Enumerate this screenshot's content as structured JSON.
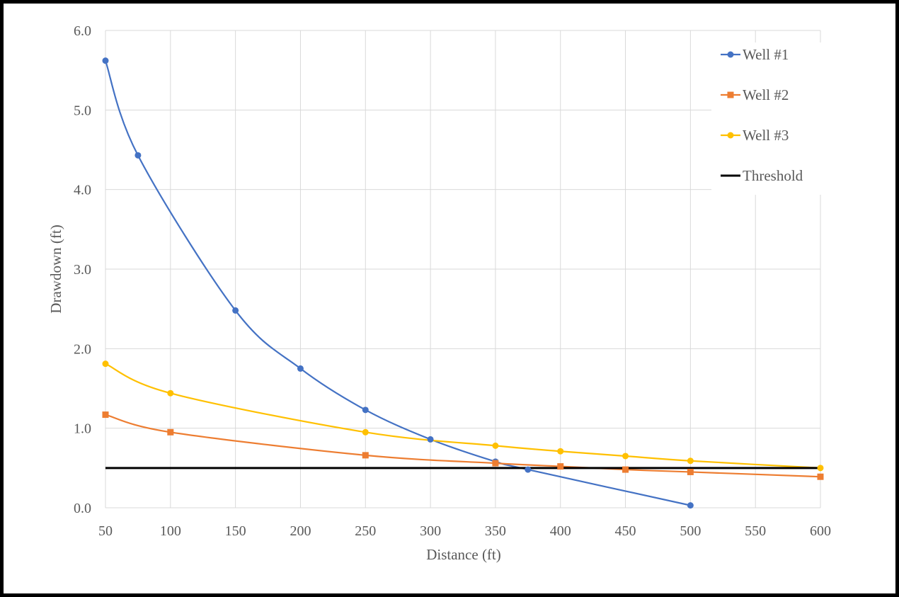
{
  "chart_data": {
    "type": "line",
    "title": "",
    "xlabel": "Distance  (ft)",
    "ylabel": "Drawdown  (ft)",
    "xlim": [
      50,
      600
    ],
    "ylim": [
      0,
      6
    ],
    "x_ticks": [
      50,
      100,
      150,
      200,
      250,
      300,
      350,
      400,
      450,
      500,
      550,
      600
    ],
    "y_ticks": [
      0,
      1,
      2,
      3,
      4,
      5,
      6
    ],
    "x_tick_labels": [
      "50",
      "100",
      "150",
      "200",
      "250",
      "300",
      "350",
      "400",
      "450",
      "500",
      "550",
      "600"
    ],
    "y_tick_labels": [
      "0.0",
      "1.0",
      "2.0",
      "3.0",
      "4.0",
      "5.0",
      "6.0"
    ],
    "grid": true,
    "legend_position": "top-right",
    "series": [
      {
        "name": "Well #1",
        "color": "#4472C4",
        "marker": "circle",
        "smooth": true,
        "points": [
          [
            50,
            5.62
          ],
          [
            75,
            4.43
          ],
          [
            150,
            2.48
          ],
          [
            200,
            1.75
          ],
          [
            250,
            1.23
          ],
          [
            300,
            0.86
          ],
          [
            350,
            0.58
          ],
          [
            375,
            0.48
          ],
          [
            500,
            0.03
          ]
        ]
      },
      {
        "name": "Well #2",
        "color": "#ED7D31",
        "marker": "square",
        "smooth": true,
        "points": [
          [
            50,
            1.17
          ],
          [
            100,
            0.95
          ],
          [
            250,
            0.66
          ],
          [
            350,
            0.56
          ],
          [
            400,
            0.52
          ],
          [
            450,
            0.48
          ],
          [
            500,
            0.45
          ],
          [
            600,
            0.39
          ]
        ]
      },
      {
        "name": "Well #3",
        "color": "#FFC000",
        "marker": "circle",
        "smooth": true,
        "points": [
          [
            50,
            1.81
          ],
          [
            100,
            1.44
          ],
          [
            250,
            0.95
          ],
          [
            350,
            0.78
          ],
          [
            400,
            0.71
          ],
          [
            450,
            0.65
          ],
          [
            500,
            0.59
          ],
          [
            600,
            0.5
          ]
        ]
      },
      {
        "name": "Threshold",
        "color": "#000000",
        "marker": "none",
        "smooth": false,
        "points": [
          [
            50,
            0.5
          ],
          [
            600,
            0.5
          ]
        ]
      }
    ]
  }
}
